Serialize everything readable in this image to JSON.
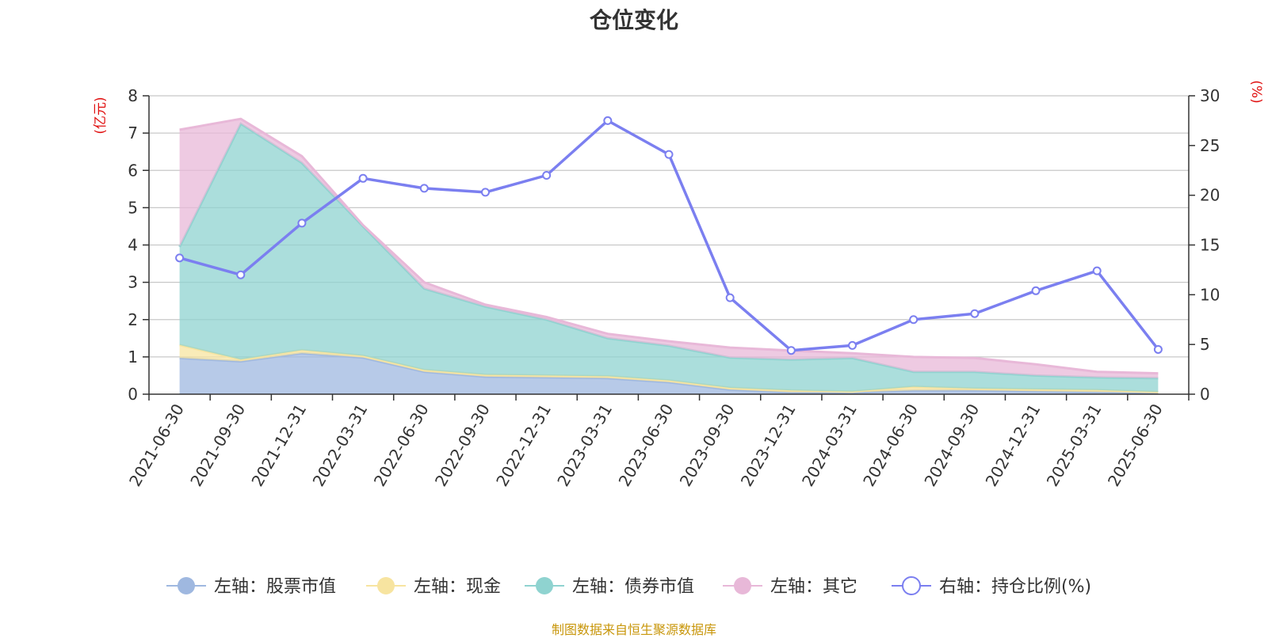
{
  "title": "仓位变化",
  "footer": "制图数据来自恒生聚源数据库",
  "chart_data": {
    "type": "area",
    "title": "仓位变化",
    "x": [
      "2021-06-30",
      "2021-09-30",
      "2021-12-31",
      "2022-03-31",
      "2022-06-30",
      "2022-09-30",
      "2022-12-31",
      "2023-03-31",
      "2023-06-30",
      "2023-09-30",
      "2023-12-31",
      "2024-03-31",
      "2024-06-30",
      "2024-09-30",
      "2024-12-31",
      "2025-03-31",
      "2025-06-30"
    ],
    "left_axis": {
      "unit": "(亿元)",
      "ylim": [
        0,
        8
      ],
      "ticks": [
        0,
        1,
        2,
        3,
        4,
        5,
        6,
        7,
        8
      ]
    },
    "right_axis": {
      "unit": "(%)",
      "ylim": [
        0,
        30
      ],
      "ticks": [
        0,
        5,
        10,
        15,
        20,
        25,
        30
      ]
    },
    "grid": true,
    "legend_position": "bottom",
    "stacked": true,
    "series": [
      {
        "name": "左轴：股票市值",
        "axis": "left",
        "type": "area",
        "color": "#9fb8e0",
        "values": [
          0.97,
          0.88,
          1.1,
          0.98,
          0.6,
          0.47,
          0.45,
          0.43,
          0.32,
          0.12,
          0.05,
          0.05,
          0.1,
          0.1,
          0.08,
          0.06,
          0.03
        ]
      },
      {
        "name": "左轴：现金",
        "axis": "left",
        "type": "area",
        "color": "#f7e4a0",
        "values": [
          0.35,
          0.05,
          0.08,
          0.05,
          0.05,
          0.05,
          0.05,
          0.05,
          0.05,
          0.05,
          0.05,
          0.02,
          0.1,
          0.05,
          0.05,
          0.05,
          0.03
        ]
      },
      {
        "name": "左轴：债券市值",
        "axis": "left",
        "type": "area",
        "color": "#8fd3d0",
        "values": [
          2.63,
          6.32,
          5.02,
          3.47,
          2.18,
          1.83,
          1.5,
          1.02,
          0.93,
          0.81,
          0.83,
          0.9,
          0.4,
          0.45,
          0.37,
          0.34,
          0.37
        ]
      },
      {
        "name": "左轴：其它",
        "axis": "left",
        "type": "area",
        "color": "#e8b8d8",
        "values": [
          3.14,
          0.13,
          0.18,
          0.03,
          0.17,
          0.05,
          0.07,
          0.12,
          0.12,
          0.27,
          0.24,
          0.13,
          0.4,
          0.37,
          0.3,
          0.15,
          0.13
        ]
      },
      {
        "name": "右轴：持仓比例(%)",
        "axis": "right",
        "type": "line",
        "color": "#7b7ff0",
        "values": [
          13.7,
          12.0,
          17.2,
          21.7,
          20.7,
          20.3,
          22.0,
          27.5,
          24.1,
          9.7,
          4.4,
          4.9,
          7.5,
          8.1,
          10.4,
          12.4,
          4.5
        ]
      }
    ]
  }
}
